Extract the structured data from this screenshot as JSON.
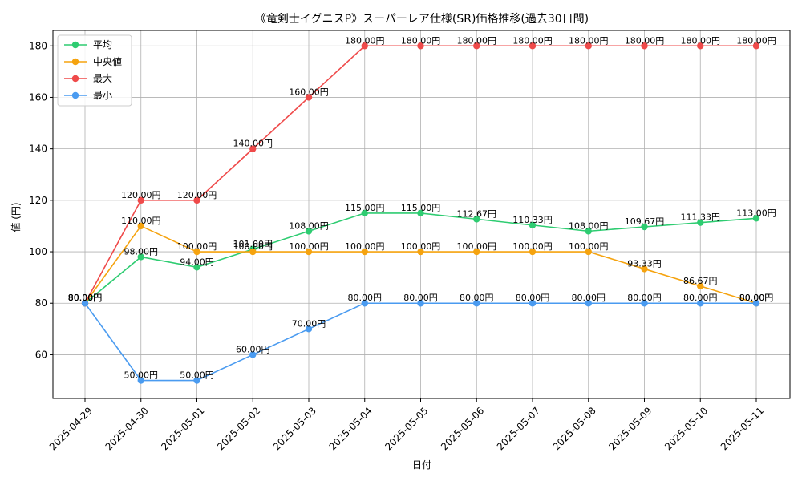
{
  "chart_data": {
    "type": "line",
    "title": "《竜剣士イグニスP》スーパーレア仕様(SR)価格推移(過去30日間)",
    "xlabel": "日付",
    "ylabel": "値 (円)",
    "ylim": [
      43,
      186
    ],
    "yticks": [
      60,
      80,
      100,
      120,
      140,
      160,
      180
    ],
    "grid": true,
    "legend_position": "top-left",
    "label_suffix": "円",
    "categories": [
      "2025-04-29",
      "2025-04-30",
      "2025-05-01",
      "2025-05-02",
      "2025-05-03",
      "2025-05-04",
      "2025-05-05",
      "2025-05-06",
      "2025-05-07",
      "2025-05-08",
      "2025-05-09",
      "2025-05-10",
      "2025-05-11"
    ],
    "series": [
      {
        "name": "平均",
        "color": "#2ecc71",
        "values": [
          80.0,
          98.0,
          94.0,
          101.0,
          108.0,
          115.0,
          115.0,
          112.67,
          110.33,
          108.0,
          109.67,
          111.33,
          113.0
        ]
      },
      {
        "name": "中央値",
        "color": "#f5a30f",
        "values": [
          80.0,
          110.0,
          100.0,
          100.0,
          100.0,
          100.0,
          100.0,
          100.0,
          100.0,
          100.0,
          93.33,
          86.67,
          80.0
        ]
      },
      {
        "name": "最大",
        "color": "#ef4a4a",
        "values": [
          80.0,
          120.0,
          120.0,
          140.0,
          160.0,
          180.0,
          180.0,
          180.0,
          180.0,
          180.0,
          180.0,
          180.0,
          180.0
        ]
      },
      {
        "name": "最小",
        "color": "#4a9bf0",
        "values": [
          80.0,
          50.0,
          50.0,
          60.0,
          70.0,
          80.0,
          80.0,
          80.0,
          80.0,
          80.0,
          80.0,
          80.0,
          80.0
        ]
      }
    ]
  }
}
